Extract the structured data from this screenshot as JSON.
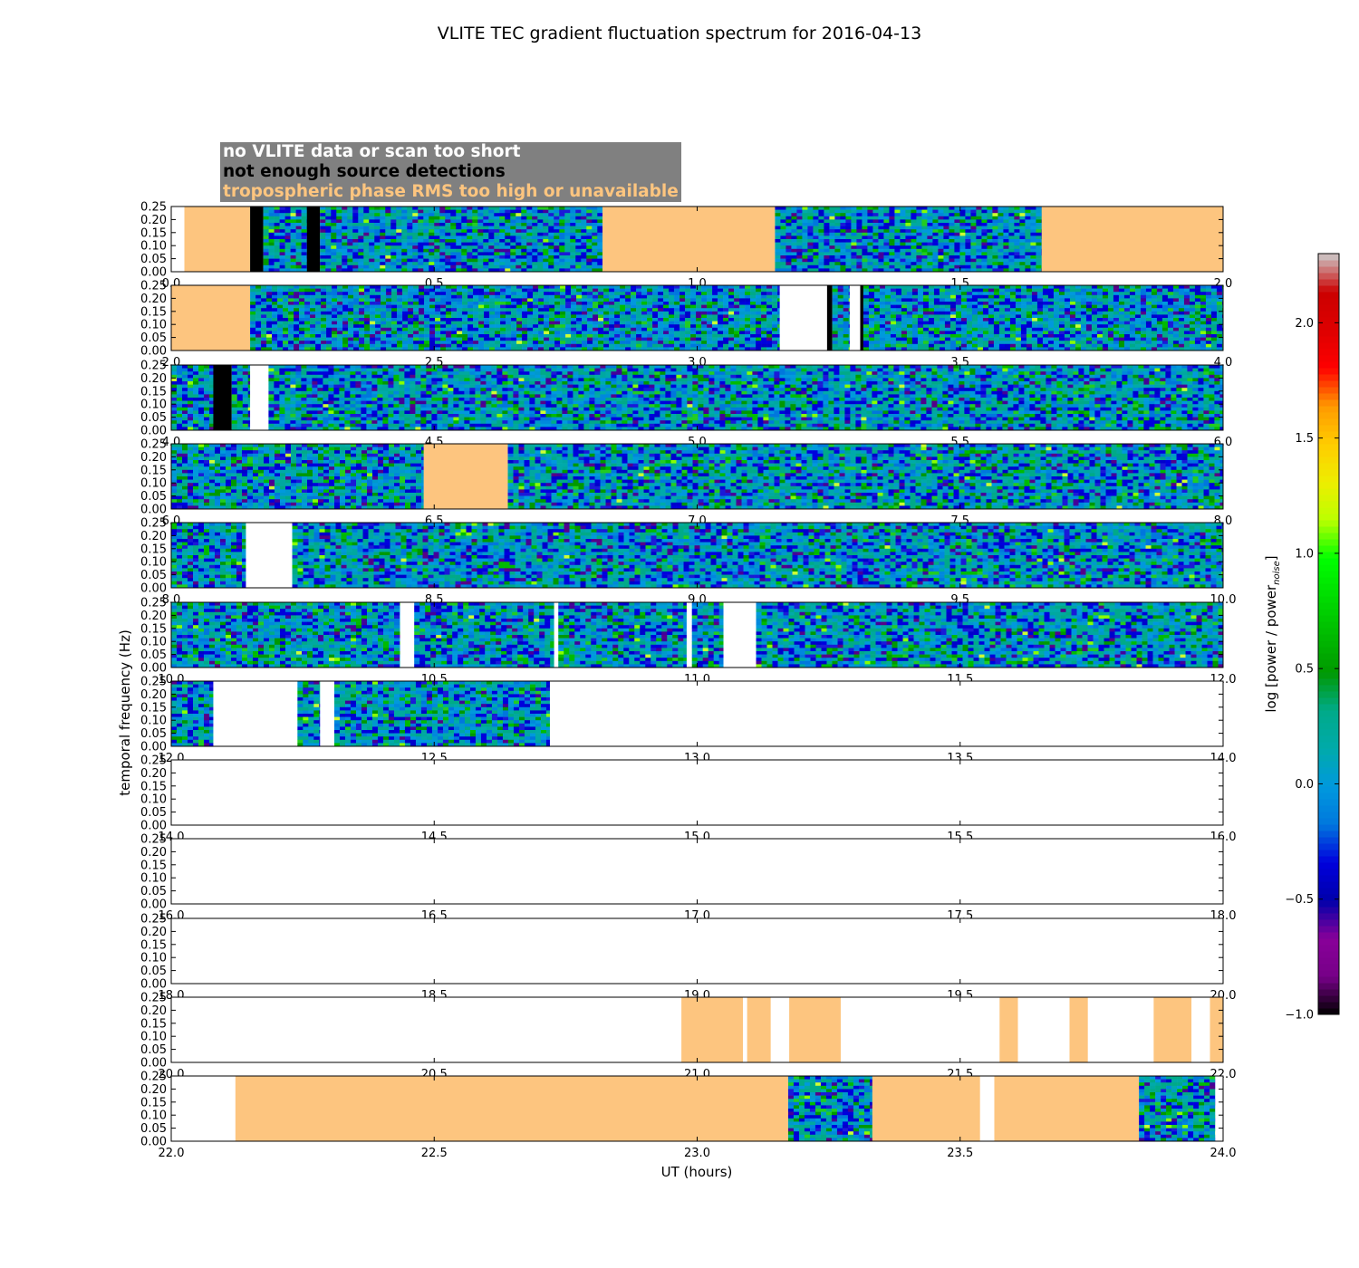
{
  "chart_data": {
    "type": "heatmap",
    "title": "VLITE TEC gradient fluctuation spectrum for 2016-04-13",
    "xlabel": "UT (hours)",
    "ylabel": "temporal frequency (Hz)",
    "colorbar_label": "log [power / power_noise]",
    "colorbar_label_main": "log [power / power",
    "colorbar_label_sub": "noise",
    "colorbar_label_close": "]",
    "colorbar_range": [
      -1.0,
      2.3
    ],
    "colorbar_ticks": [
      "2.0",
      "1.5",
      "1.0",
      "0.5",
      "0.0",
      "−0.5",
      "−1.0"
    ],
    "colorbar_tick_values": [
      2.0,
      1.5,
      1.0,
      0.5,
      0.0,
      -0.5,
      -1.0
    ],
    "ylim": [
      0.0,
      0.25
    ],
    "y_tick_labels": [
      "0.25",
      "0.20",
      "0.15",
      "0.10",
      "0.05",
      "0.00"
    ],
    "y_tick_values": [
      0.25,
      0.2,
      0.15,
      0.1,
      0.05,
      0.0
    ],
    "status_colors": {
      "no_data": "#ffffff",
      "few_detections": "#000000",
      "tropo_rms": "#fdc57f"
    },
    "legend": [
      {
        "text": "no VLITE data or scan too short",
        "color": "#ffffff"
      },
      {
        "text": "not enough source detections",
        "color": "#000000"
      },
      {
        "text": "tropospheric phase RMS too high or unavailable",
        "color": "#fdc57f"
      }
    ],
    "panels": [
      {
        "start": 0.0,
        "end": 2.0,
        "x_tick_labels": [
          "0.0",
          "0.5",
          "1.0",
          "1.5",
          "2.0"
        ],
        "segments": [
          {
            "from": 0.0,
            "to": 0.025,
            "status": "no_data"
          },
          {
            "from": 0.025,
            "to": 0.15,
            "status": "tropo_rms"
          },
          {
            "from": 0.15,
            "to": 0.175,
            "status": "few_detections"
          },
          {
            "from": 0.175,
            "to": 0.258,
            "status": "spectrum"
          },
          {
            "from": 0.258,
            "to": 0.283,
            "status": "few_detections"
          },
          {
            "from": 0.283,
            "to": 0.82,
            "status": "spectrum"
          },
          {
            "from": 0.82,
            "to": 1.148,
            "status": "tropo_rms"
          },
          {
            "from": 1.148,
            "to": 1.655,
            "status": "spectrum"
          },
          {
            "from": 1.655,
            "to": 2.0,
            "status": "tropo_rms"
          }
        ]
      },
      {
        "start": 2.0,
        "end": 4.0,
        "x_tick_labels": [
          "2.0",
          "2.5",
          "3.0",
          "3.5",
          "4.0"
        ],
        "segments": [
          {
            "from": 2.0,
            "to": 2.15,
            "status": "tropo_rms"
          },
          {
            "from": 2.15,
            "to": 3.157,
            "status": "spectrum"
          },
          {
            "from": 3.157,
            "to": 3.247,
            "status": "no_data"
          },
          {
            "from": 3.247,
            "to": 3.257,
            "status": "few_detections"
          },
          {
            "from": 3.257,
            "to": 3.29,
            "status": "spectrum"
          },
          {
            "from": 3.29,
            "to": 3.31,
            "status": "no_data"
          },
          {
            "from": 3.31,
            "to": 3.316,
            "status": "few_detections"
          },
          {
            "from": 3.316,
            "to": 4.0,
            "status": "spectrum"
          }
        ]
      },
      {
        "start": 4.0,
        "end": 6.0,
        "x_tick_labels": [
          "4.0",
          "4.5",
          "5.0",
          "5.5",
          "6.0"
        ],
        "segments": [
          {
            "from": 4.0,
            "to": 4.08,
            "status": "spectrum"
          },
          {
            "from": 4.08,
            "to": 4.115,
            "status": "few_detections"
          },
          {
            "from": 4.115,
            "to": 4.15,
            "status": "spectrum"
          },
          {
            "from": 4.15,
            "to": 4.185,
            "status": "no_data"
          },
          {
            "from": 4.185,
            "to": 6.0,
            "status": "spectrum"
          }
        ]
      },
      {
        "start": 6.0,
        "end": 8.0,
        "x_tick_labels": [
          "6.0",
          "6.5",
          "7.0",
          "7.5",
          "8.0"
        ],
        "segments": [
          {
            "from": 6.0,
            "to": 6.48,
            "status": "spectrum"
          },
          {
            "from": 6.48,
            "to": 6.64,
            "status": "tropo_rms"
          },
          {
            "from": 6.64,
            "to": 8.0,
            "status": "spectrum"
          }
        ]
      },
      {
        "start": 8.0,
        "end": 10.0,
        "x_tick_labels": [
          "8.0",
          "8.5",
          "9.0",
          "9.5",
          "10.0"
        ],
        "segments": [
          {
            "from": 8.0,
            "to": 8.142,
            "status": "spectrum"
          },
          {
            "from": 8.142,
            "to": 8.23,
            "status": "no_data"
          },
          {
            "from": 8.23,
            "to": 10.0,
            "status": "spectrum"
          }
        ]
      },
      {
        "start": 10.0,
        "end": 12.0,
        "x_tick_labels": [
          "10.0",
          "10.5",
          "11.0",
          "11.5",
          "12.0"
        ],
        "segments": [
          {
            "from": 10.0,
            "to": 10.435,
            "status": "spectrum"
          },
          {
            "from": 10.435,
            "to": 10.462,
            "status": "no_data"
          },
          {
            "from": 10.462,
            "to": 10.728,
            "status": "spectrum"
          },
          {
            "from": 10.728,
            "to": 10.736,
            "status": "no_data"
          },
          {
            "from": 10.736,
            "to": 10.98,
            "status": "spectrum"
          },
          {
            "from": 10.98,
            "to": 10.99,
            "status": "no_data"
          },
          {
            "from": 10.99,
            "to": 11.05,
            "status": "spectrum"
          },
          {
            "from": 11.05,
            "to": 11.112,
            "status": "no_data"
          },
          {
            "from": 11.112,
            "to": 12.0,
            "status": "spectrum"
          }
        ]
      },
      {
        "start": 12.0,
        "end": 14.0,
        "x_tick_labels": [
          "12.0",
          "12.5",
          "13.0",
          "13.5",
          "14.0"
        ],
        "segments": [
          {
            "from": 12.0,
            "to": 12.08,
            "status": "spectrum"
          },
          {
            "from": 12.08,
            "to": 12.24,
            "status": "no_data"
          },
          {
            "from": 12.24,
            "to": 12.283,
            "status": "spectrum"
          },
          {
            "from": 12.283,
            "to": 12.31,
            "status": "no_data"
          },
          {
            "from": 12.31,
            "to": 12.72,
            "status": "spectrum"
          },
          {
            "from": 12.72,
            "to": 14.0,
            "status": "no_data"
          }
        ]
      },
      {
        "start": 14.0,
        "end": 16.0,
        "x_tick_labels": [
          "14.0",
          "14.5",
          "15.0",
          "15.5",
          "16.0"
        ],
        "segments": [
          {
            "from": 14.0,
            "to": 16.0,
            "status": "no_data"
          }
        ]
      },
      {
        "start": 16.0,
        "end": 18.0,
        "x_tick_labels": [
          "16.0",
          "16.5",
          "17.0",
          "17.5",
          "18.0"
        ],
        "segments": [
          {
            "from": 16.0,
            "to": 18.0,
            "status": "no_data"
          }
        ]
      },
      {
        "start": 18.0,
        "end": 20.0,
        "x_tick_labels": [
          "18.0",
          "18.5",
          "19.0",
          "19.5",
          "20.0"
        ],
        "segments": [
          {
            "from": 18.0,
            "to": 20.0,
            "status": "no_data"
          }
        ]
      },
      {
        "start": 20.0,
        "end": 22.0,
        "x_tick_labels": [
          "20.0",
          "20.5",
          "21.0",
          "21.5",
          "22.0"
        ],
        "segments": [
          {
            "from": 20.0,
            "to": 20.97,
            "status": "no_data"
          },
          {
            "from": 20.97,
            "to": 21.087,
            "status": "tropo_rms"
          },
          {
            "from": 21.087,
            "to": 21.095,
            "status": "no_data"
          },
          {
            "from": 21.095,
            "to": 21.14,
            "status": "tropo_rms"
          },
          {
            "from": 21.14,
            "to": 21.175,
            "status": "no_data"
          },
          {
            "from": 21.175,
            "to": 21.273,
            "status": "tropo_rms"
          },
          {
            "from": 21.273,
            "to": 21.575,
            "status": "no_data"
          },
          {
            "from": 21.575,
            "to": 21.61,
            "status": "tropo_rms"
          },
          {
            "from": 21.61,
            "to": 21.708,
            "status": "no_data"
          },
          {
            "from": 21.708,
            "to": 21.743,
            "status": "tropo_rms"
          },
          {
            "from": 21.743,
            "to": 21.868,
            "status": "no_data"
          },
          {
            "from": 21.868,
            "to": 21.94,
            "status": "tropo_rms"
          },
          {
            "from": 21.94,
            "to": 21.975,
            "status": "no_data"
          },
          {
            "from": 21.975,
            "to": 22.0,
            "status": "tropo_rms"
          }
        ]
      },
      {
        "start": 22.0,
        "end": 24.0,
        "x_tick_labels": [
          "22.0",
          "22.5",
          "23.0",
          "23.5",
          "24.0"
        ],
        "segments": [
          {
            "from": 22.0,
            "to": 22.122,
            "status": "no_data"
          },
          {
            "from": 22.122,
            "to": 23.173,
            "status": "tropo_rms"
          },
          {
            "from": 23.173,
            "to": 23.333,
            "status": "spectrum"
          },
          {
            "from": 23.333,
            "to": 23.538,
            "status": "tropo_rms"
          },
          {
            "from": 23.538,
            "to": 23.565,
            "status": "no_data"
          },
          {
            "from": 23.565,
            "to": 23.84,
            "status": "tropo_rms"
          },
          {
            "from": 23.84,
            "to": 23.985,
            "status": "spectrum"
          },
          {
            "from": 23.985,
            "to": 24.0,
            "status": "no_data"
          }
        ]
      }
    ]
  }
}
